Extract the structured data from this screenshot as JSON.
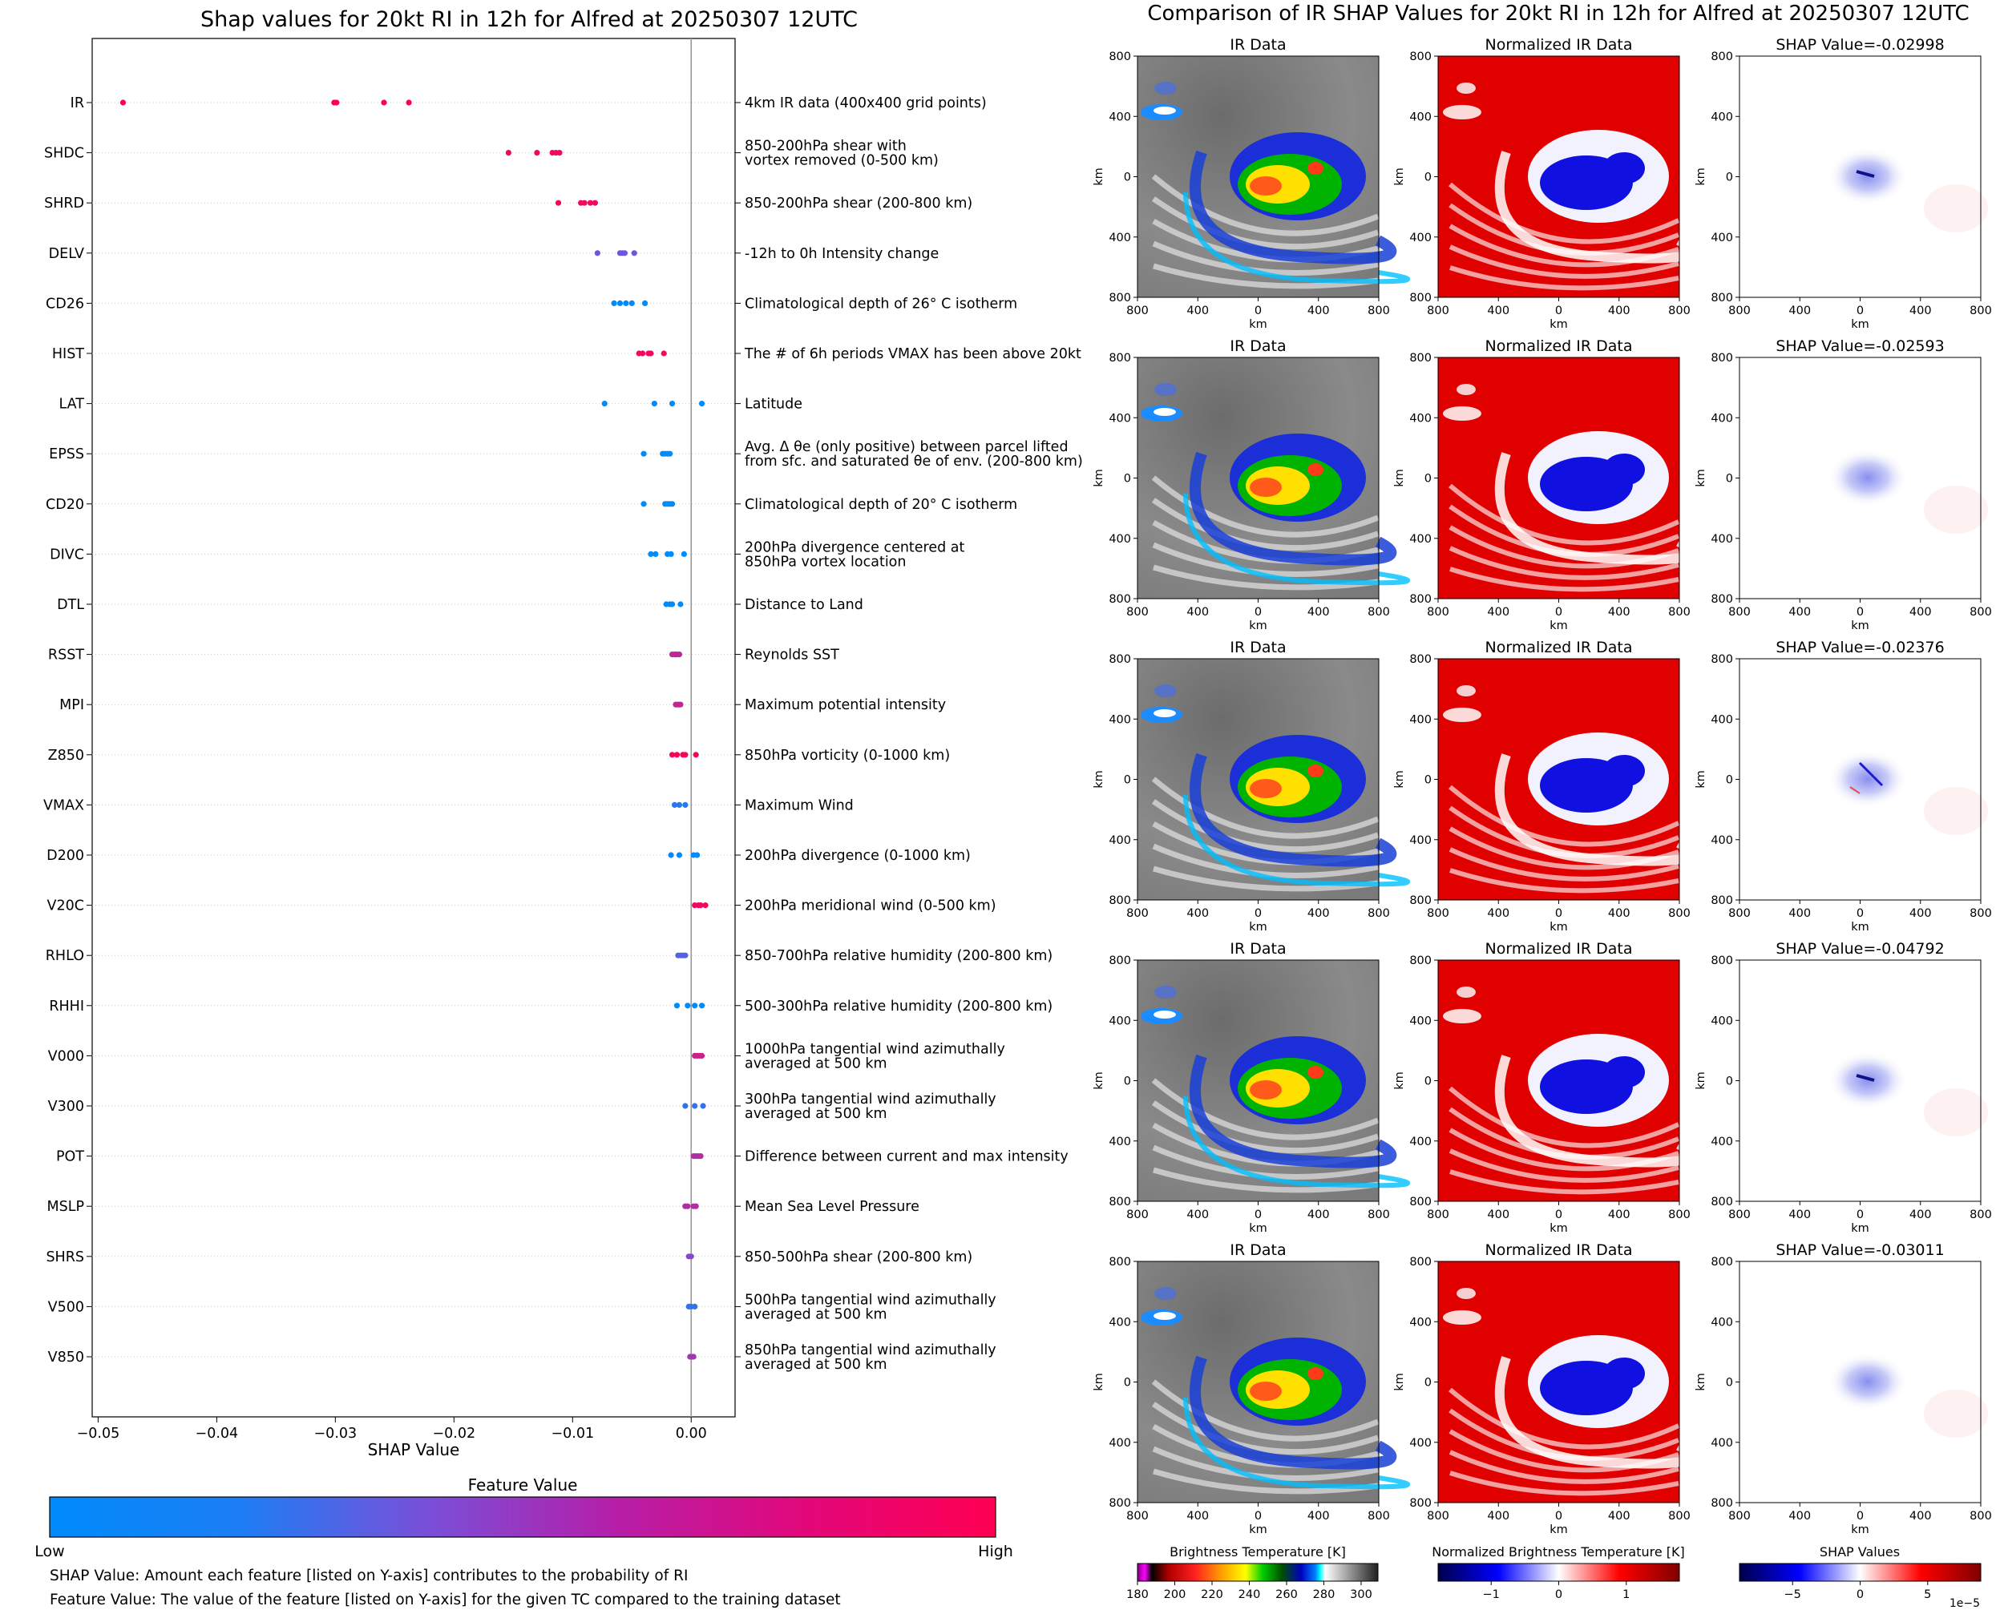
{
  "left_chart": {
    "title": "Shap values for 20kt RI in 12h for Alfred at 20250307 12UTC",
    "xlabel": "SHAP Value",
    "colorbar_title": "Feature Value",
    "colorbar_low": "Low",
    "colorbar_high": "High",
    "footnote_1": "SHAP Value: Amount each feature [listed on Y-axis] contributes to the probability of RI",
    "footnote_2": "Feature Value: The value of the feature [listed on Y-axis] for the given TC compared to the training dataset"
  },
  "right_panel": {
    "title": "Comparison of IR SHAP Values for 20kt RI in 12h for Alfred at 20250307 12UTC",
    "col_titles": [
      "IR Data",
      "Normalized IR Data"
    ],
    "shap_titles": [
      "SHAP Value=-0.02998",
      "SHAP Value=-0.02593",
      "SHAP Value=-0.02376",
      "SHAP Value=-0.04792",
      "SHAP Value=-0.03011"
    ],
    "axis_label": "km",
    "tick_labels": [
      "800",
      "400",
      "0",
      "400",
      "800"
    ],
    "colorbars": [
      {
        "title": "Brightness Temperature [K]",
        "ticks": [
          "180",
          "200",
          "220",
          "240",
          "260",
          "280",
          "300"
        ]
      },
      {
        "title": "Normalized Brightness Temperature [K]",
        "ticks": [
          "−1",
          "0",
          "1"
        ]
      },
      {
        "title": "SHAP Values",
        "ticks": [
          "−5",
          "0",
          "5"
        ],
        "offset_label": "1e−5"
      }
    ]
  },
  "colors": {
    "low": "#008bfb",
    "mid": "#7a4fd8",
    "high": "#ff0052",
    "axis": "#000000",
    "zero_line": "#999999"
  },
  "chart_data": {
    "type": "scatter",
    "xlim": [
      -0.0505,
      0.0037
    ],
    "xticks": [
      -0.05,
      -0.04,
      -0.03,
      -0.02,
      -0.01,
      0.0
    ],
    "xtick_labels": [
      "−0.05",
      "−0.04",
      "−0.03",
      "−0.02",
      "−0.01",
      "0.00"
    ],
    "features": [
      {
        "name": "IR",
        "desc": [
          "4km IR data (400x400 grid points)"
        ],
        "color": 1.0,
        "values": [
          -0.0479,
          -0.0301,
          -0.0299,
          -0.0259,
          -0.0238
        ]
      },
      {
        "name": "SHDC",
        "desc": [
          "850-200hPa shear with",
          "vortex removed (0-500 km)"
        ],
        "color": 0.95,
        "values": [
          -0.0154,
          -0.013,
          -0.0117,
          -0.0114,
          -0.0111
        ]
      },
      {
        "name": "SHRD",
        "desc": [
          "850-200hPa shear (200-800 km)"
        ],
        "color": 0.95,
        "values": [
          -0.0112,
          -0.0093,
          -0.009,
          -0.0085,
          -0.0081
        ]
      },
      {
        "name": "DELV",
        "desc": [
          "-12h to 0h Intensity change"
        ],
        "color": 0.45,
        "values": [
          -0.0079,
          -0.006,
          -0.0058,
          -0.0056,
          -0.0048
        ]
      },
      {
        "name": "CD26",
        "desc": [
          "Climatological depth of 26° C isotherm"
        ],
        "color": 0.0,
        "values": [
          -0.0065,
          -0.006,
          -0.0055,
          -0.005,
          -0.0039
        ]
      },
      {
        "name": "HIST",
        "desc": [
          "The # of 6h periods VMAX has been above 20kt"
        ],
        "color": 0.95,
        "values": [
          -0.0044,
          -0.0041,
          -0.0036,
          -0.0034,
          -0.0023
        ]
      },
      {
        "name": "LAT",
        "desc": [
          "Latitude"
        ],
        "color": 0.0,
        "values": [
          -0.0073,
          -0.0031,
          -0.0016,
          0.0009
        ]
      },
      {
        "name": "EPSS",
        "desc": [
          "Avg. Δ θe (only positive) between parcel lifted",
          "from sfc. and saturated θe of env. (200-800 km)"
        ],
        "color": 0.0,
        "values": [
          -0.004,
          -0.0024,
          -0.0022,
          -0.002,
          -0.0018
        ]
      },
      {
        "name": "CD20",
        "desc": [
          "Climatological depth of 20° C isotherm"
        ],
        "color": 0.0,
        "values": [
          -0.004,
          -0.0022,
          -0.002,
          -0.0018,
          -0.0016
        ]
      },
      {
        "name": "DIVC",
        "desc": [
          "200hPa divergence centered at",
          "850hPa vortex location"
        ],
        "color": 0.0,
        "values": [
          -0.0034,
          -0.003,
          -0.002,
          -0.0017,
          -0.0006
        ]
      },
      {
        "name": "DTL",
        "desc": [
          "Distance to Land"
        ],
        "color": 0.0,
        "values": [
          -0.0021,
          -0.0018,
          -0.0016,
          -0.0009
        ]
      },
      {
        "name": "RSST",
        "desc": [
          "Reynolds SST"
        ],
        "color": 0.75,
        "values": [
          -0.0016,
          -0.0014,
          -0.0013,
          -0.0012,
          -0.001
        ]
      },
      {
        "name": "MPI",
        "desc": [
          "Maximum potential intensity"
        ],
        "color": 0.75,
        "values": [
          -0.0013,
          -0.0012,
          -0.0011,
          -0.001,
          -0.0009
        ]
      },
      {
        "name": "Z850",
        "desc": [
          "850hPa vorticity (0-1000 km)"
        ],
        "color": 1.0,
        "values": [
          -0.0016,
          -0.0012,
          -0.0007,
          -0.0005,
          0.0004
        ]
      },
      {
        "name": "VMAX",
        "desc": [
          "Maximum Wind"
        ],
        "color": 0.15,
        "values": [
          -0.0014,
          -0.001,
          -0.0005
        ]
      },
      {
        "name": "D200",
        "desc": [
          "200hPa divergence (0-1000 km)"
        ],
        "color": 0.0,
        "values": [
          -0.0017,
          -0.001,
          0.0002,
          0.0005
        ]
      },
      {
        "name": "V20C",
        "desc": [
          "200hPa meridional wind (0-500 km)"
        ],
        "color": 0.95,
        "values": [
          0.0003,
          0.0006,
          0.0008,
          0.0012
        ]
      },
      {
        "name": "RHLO",
        "desc": [
          "850-700hPa relative humidity (200-800 km)"
        ],
        "color": 0.35,
        "values": [
          -0.0011,
          -0.0009,
          -0.0007,
          -0.0005
        ]
      },
      {
        "name": "RHHI",
        "desc": [
          "500-300hPa relative humidity (200-800 km)"
        ],
        "color": 0.0,
        "values": [
          -0.0012,
          -0.0003,
          0.0003,
          0.0009
        ]
      },
      {
        "name": "V000",
        "desc": [
          "1000hPa tangential wind azimuthally",
          "averaged at 500 km"
        ],
        "color": 0.8,
        "values": [
          0.0003,
          0.0005,
          0.0007,
          0.0009
        ]
      },
      {
        "name": "V300",
        "desc": [
          "300hPa tangential wind azimuthally",
          "averaged at 500 km"
        ],
        "color": 0.2,
        "values": [
          -0.0005,
          0.0003,
          0.001
        ]
      },
      {
        "name": "POT",
        "desc": [
          "Difference between current and max intensity"
        ],
        "color": 0.7,
        "values": [
          0.0002,
          0.0004,
          0.0006,
          0.0008
        ]
      },
      {
        "name": "MSLP",
        "desc": [
          "Mean Sea Level Pressure"
        ],
        "color": 0.7,
        "values": [
          -0.0005,
          -0.0003,
          0.0002,
          0.0004
        ]
      },
      {
        "name": "SHRS",
        "desc": [
          "850-500hPa shear (200-800 km)"
        ],
        "color": 0.55,
        "values": [
          -0.0002,
          0.0
        ]
      },
      {
        "name": "V500",
        "desc": [
          "500hPa tangential wind azimuthally",
          "averaged at 500 km"
        ],
        "color": 0.2,
        "values": [
          -0.0002,
          0.0,
          0.0003
        ]
      },
      {
        "name": "V850",
        "desc": [
          "850hPa tangential wind azimuthally",
          "averaged at 500 km"
        ],
        "color": 0.65,
        "values": [
          -0.0001,
          0.0001,
          0.0002
        ]
      }
    ]
  }
}
